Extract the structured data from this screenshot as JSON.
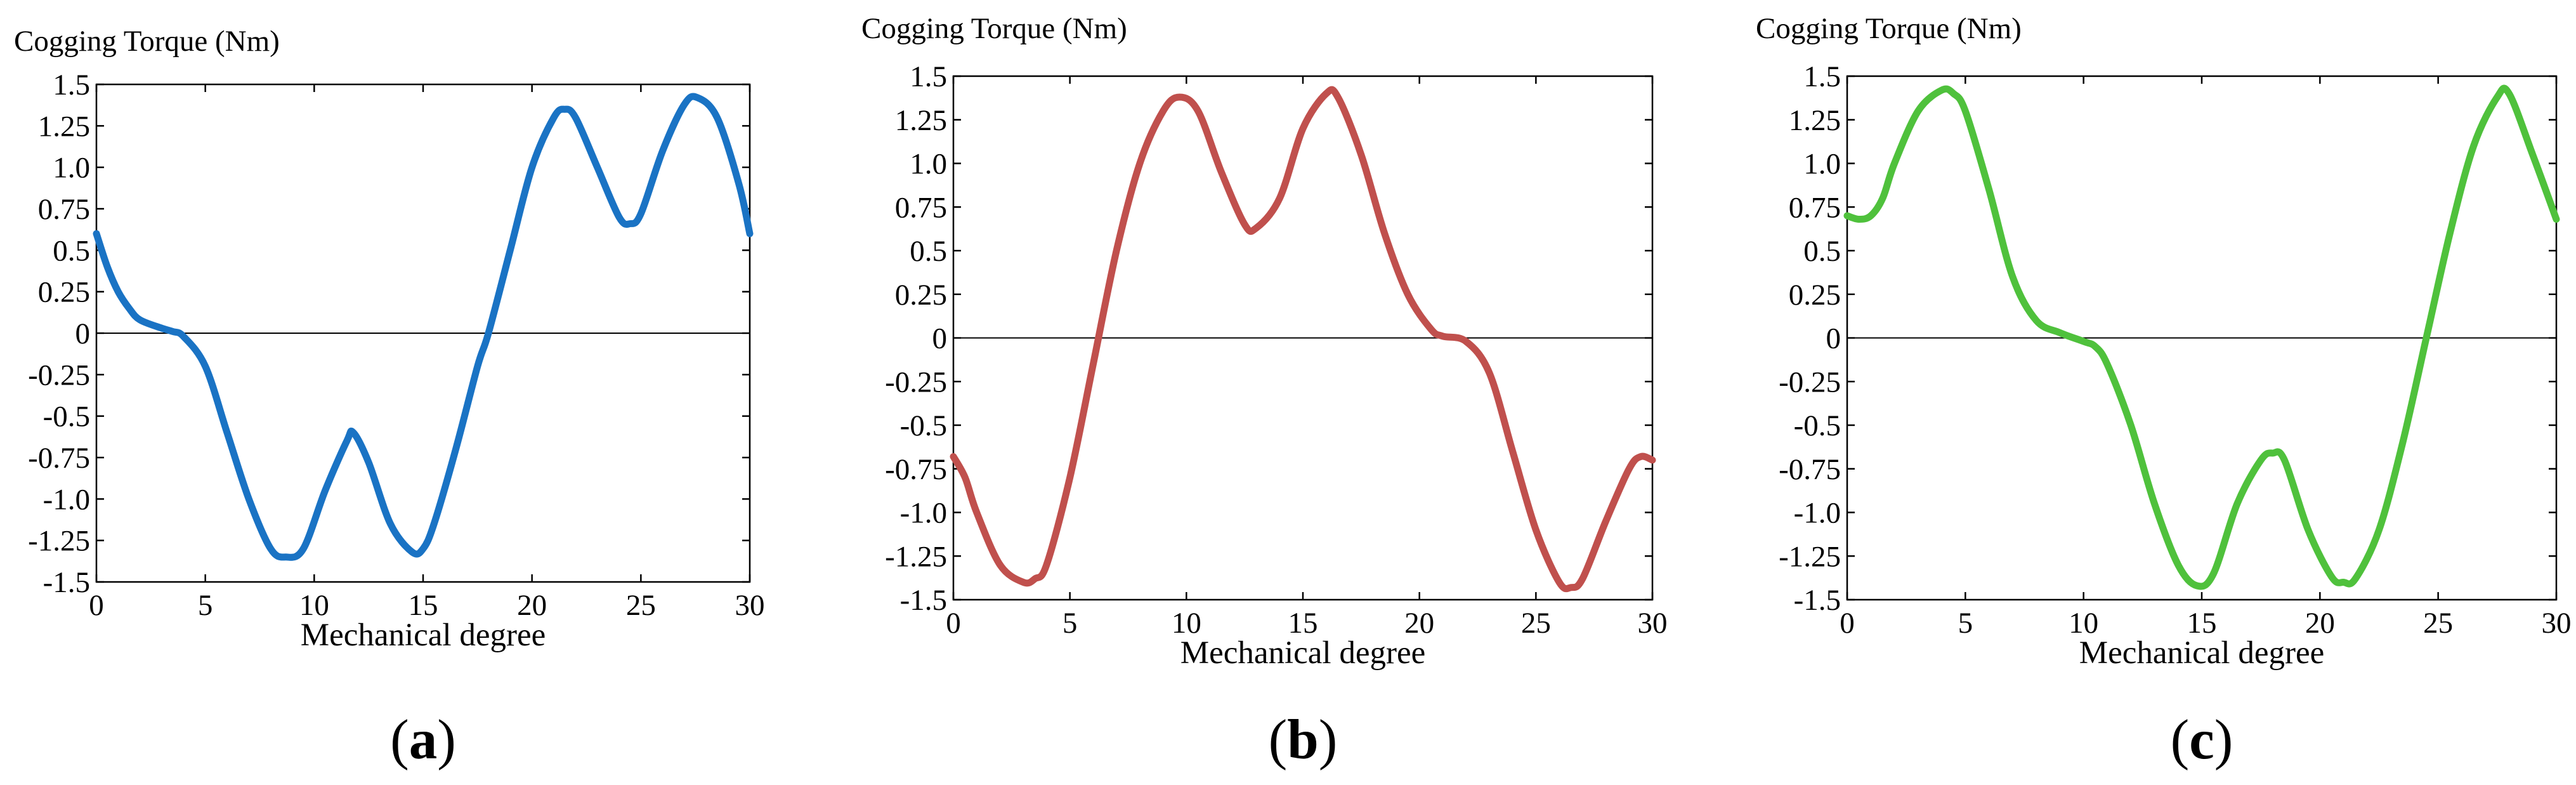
{
  "chart_data": [
    {
      "type": "line",
      "panel": "a",
      "panel_label": {
        "open": "(",
        "letter": "a",
        "close": ")"
      },
      "ylabel": "Cogging Torque (Nm)",
      "xlabel": "Mechanical degree",
      "xlim": [
        0,
        30
      ],
      "ylim": [
        -1.5,
        1.5
      ],
      "xticks": [
        0,
        5,
        10,
        15,
        20,
        25,
        30
      ],
      "yticks": [
        1.5,
        1.25,
        1.0,
        0.75,
        0.5,
        0.25,
        0,
        -0.25,
        -0.5,
        -0.75,
        -1.0,
        -1.25,
        -1.5
      ],
      "ytick_labels": [
        "1.5",
        "1.25",
        "1.0",
        "0.75",
        "0.5",
        "0.25",
        "0",
        "-0.25",
        "-0.5",
        "-0.75",
        "-1.0",
        "-1.25",
        "-1.5"
      ],
      "zero_line": true,
      "color": "#1a73c4",
      "series": [
        {
          "name": "Cogging Torque",
          "x": [
            0,
            0.5,
            1,
            1.5,
            2,
            3,
            3.5,
            4,
            5,
            6,
            7,
            8,
            8.7,
            9.5,
            10.5,
            11.5,
            11.8,
            12.5,
            13.5,
            14.5,
            15,
            15.5,
            16.5,
            17.5,
            18,
            19,
            20,
            21,
            21.5,
            22,
            23,
            24,
            24.5,
            25,
            26,
            27,
            27.6,
            28.5,
            29.5,
            30
          ],
          "y": [
            0.6,
            0.4,
            0.25,
            0.15,
            0.08,
            0.03,
            0.01,
            -0.02,
            -0.2,
            -0.6,
            -1.0,
            -1.3,
            -1.35,
            -1.3,
            -0.95,
            -0.65,
            -0.6,
            -0.78,
            -1.15,
            -1.32,
            -1.3,
            -1.15,
            -0.7,
            -0.2,
            0.0,
            0.5,
            1.0,
            1.3,
            1.35,
            1.3,
            1.0,
            0.7,
            0.66,
            0.72,
            1.1,
            1.38,
            1.42,
            1.3,
            0.9,
            0.6
          ]
        }
      ]
    },
    {
      "type": "line",
      "panel": "b",
      "panel_label": {
        "open": "(",
        "letter": "b",
        "close": ")"
      },
      "ylabel": "Cogging Torque (Nm)",
      "xlabel": "Mechanical degree",
      "xlim": [
        0,
        30
      ],
      "ylim": [
        -1.5,
        1.5
      ],
      "xticks": [
        0,
        5,
        10,
        15,
        20,
        25,
        30
      ],
      "yticks": [
        1.5,
        1.25,
        1.0,
        0.75,
        0.5,
        0.25,
        0,
        -0.25,
        -0.5,
        -0.75,
        -1.0,
        -1.25,
        -1.5
      ],
      "ytick_labels": [
        "1.5",
        "1.25",
        "1.0",
        "0.75",
        "0.5",
        "0.25",
        "0",
        "-0.25",
        "-0.5",
        "-0.75",
        "-1.0",
        "-1.25",
        "-1.5"
      ],
      "zero_line": true,
      "color": "#c0504d",
      "series": [
        {
          "name": "Cogging Torque",
          "x": [
            0,
            0.5,
            1,
            2,
            3,
            3.5,
            4,
            5,
            6,
            7,
            8,
            9,
            9.7,
            10.5,
            11.5,
            12.5,
            13,
            14,
            15,
            16,
            16.5,
            17.5,
            18.5,
            19.5,
            20.5,
            21,
            22,
            23,
            24,
            25,
            26,
            26.5,
            27,
            28,
            29,
            29.5,
            30
          ],
          "y": [
            -0.68,
            -0.8,
            -1.0,
            -1.3,
            -1.4,
            -1.38,
            -1.3,
            -0.8,
            -0.15,
            0.5,
            1.0,
            1.3,
            1.38,
            1.3,
            0.95,
            0.65,
            0.63,
            0.8,
            1.2,
            1.4,
            1.38,
            1.05,
            0.6,
            0.25,
            0.05,
            0.01,
            -0.02,
            -0.2,
            -0.65,
            -1.1,
            -1.4,
            -1.43,
            -1.38,
            -1.05,
            -0.75,
            -0.68,
            -0.7
          ]
        }
      ]
    },
    {
      "type": "line",
      "panel": "c",
      "panel_label": {
        "open": "(",
        "letter": "c",
        "close": ")"
      },
      "ylabel": "Cogging Torque (Nm)",
      "xlabel": "Mechanical degree",
      "xlim": [
        0,
        30
      ],
      "ylim": [
        -1.5,
        1.5
      ],
      "xticks": [
        0,
        5,
        10,
        15,
        20,
        25,
        30
      ],
      "yticks": [
        1.5,
        1.25,
        1.0,
        0.75,
        0.5,
        0.25,
        0,
        -0.25,
        -0.5,
        -0.75,
        -1.0,
        -1.25,
        -1.5
      ],
      "ytick_labels": [
        "1.5",
        "1.25",
        "1.0",
        "0.75",
        "0.5",
        "0.25",
        "0",
        "-0.25",
        "-0.5",
        "-0.75",
        "-1.0",
        "-1.25",
        "-1.5"
      ],
      "zero_line": true,
      "color": "#4fc13c",
      "series": [
        {
          "name": "Cogging Torque",
          "x": [
            0,
            0.5,
            1,
            1.5,
            2,
            3,
            4,
            4.5,
            5,
            6,
            7,
            8,
            9,
            10,
            10.5,
            11,
            12,
            13,
            14,
            14.8,
            15.5,
            16.5,
            17.5,
            18,
            18.5,
            19.5,
            20.5,
            21,
            21.5,
            22.5,
            23.5,
            24.5,
            25.5,
            26.5,
            27.5,
            28,
            29,
            30
          ],
          "y": [
            0.7,
            0.68,
            0.7,
            0.8,
            1.0,
            1.3,
            1.42,
            1.4,
            1.3,
            0.85,
            0.35,
            0.1,
            0.03,
            -0.02,
            -0.05,
            -0.15,
            -0.5,
            -0.95,
            -1.3,
            -1.42,
            -1.35,
            -0.95,
            -0.7,
            -0.66,
            -0.7,
            -1.1,
            -1.37,
            -1.4,
            -1.38,
            -1.1,
            -0.6,
            0.0,
            0.6,
            1.1,
            1.38,
            1.4,
            1.05,
            0.68
          ]
        }
      ]
    }
  ]
}
